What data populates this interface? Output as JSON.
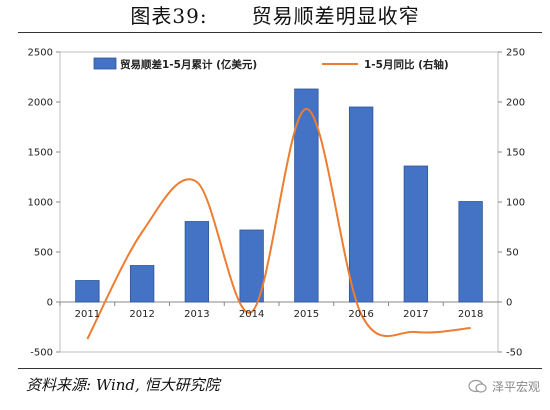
{
  "header": {
    "figure_label": "图表39:",
    "title": "贸易顺差明显收窄"
  },
  "source_note": "资料来源: Wind, 恒大研究院",
  "watermark": "泽平宏观",
  "chart_data": {
    "type": "bar",
    "categories": [
      "2011",
      "2012",
      "2013",
      "2014",
      "2015",
      "2016",
      "2017",
      "2018"
    ],
    "series": [
      {
        "name": "贸易顺差1-5月累计 (亿美元)",
        "type": "bar",
        "axis": "left",
        "color": "#4472C4",
        "values": [
          215,
          365,
          805,
          720,
          2130,
          1950,
          1360,
          1005
        ]
      },
      {
        "name": "1-5月同比 (右轴)",
        "type": "line",
        "axis": "right",
        "color": "#ED7D31",
        "values": [
          -37,
          70,
          120,
          -10,
          193,
          -12,
          -30,
          -26
        ]
      }
    ],
    "left_axis": {
      "min": -500,
      "max": 2500,
      "ticks": [
        -500,
        0,
        500,
        1000,
        1500,
        2000,
        2500
      ]
    },
    "right_axis": {
      "min": -50,
      "max": 250,
      "ticks": [
        -50,
        0,
        50,
        100,
        150,
        200,
        250
      ]
    },
    "legend_position": "top",
    "grid": false
  }
}
